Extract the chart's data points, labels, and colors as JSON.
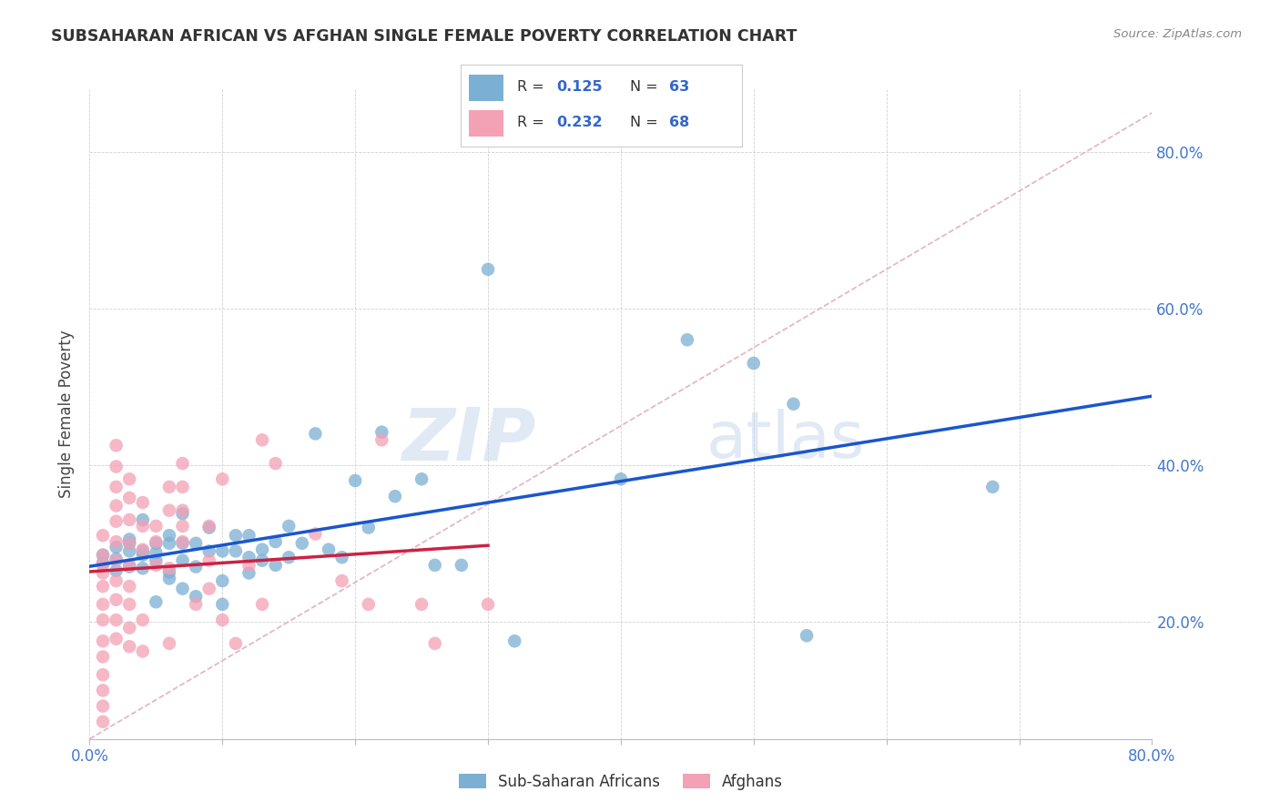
{
  "title": "SUBSAHARAN AFRICAN VS AFGHAN SINGLE FEMALE POVERTY CORRELATION CHART",
  "source": "Source: ZipAtlas.com",
  "ylabel": "Single Female Poverty",
  "xlim": [
    0.0,
    0.8
  ],
  "ylim": [
    0.05,
    0.88
  ],
  "yticks": [
    0.2,
    0.4,
    0.6,
    0.8
  ],
  "xticks": [
    0.0,
    0.1,
    0.2,
    0.3,
    0.4,
    0.5,
    0.6,
    0.7,
    0.8
  ],
  "blue_R": 0.125,
  "blue_N": 63,
  "pink_R": 0.232,
  "pink_N": 68,
  "blue_color": "#7BAFD4",
  "pink_color": "#F4A0B5",
  "blue_line_color": "#1A56CC",
  "pink_line_color": "#CC2244",
  "diagonal_color": "#E0AABB",
  "watermark_zip": "ZIP",
  "watermark_atlas": "atlas",
  "legend_label_blue": "Sub-Saharan Africans",
  "legend_label_pink": "Afghans",
  "blue_scatter": [
    [
      0.01,
      0.285
    ],
    [
      0.01,
      0.275
    ],
    [
      0.02,
      0.295
    ],
    [
      0.02,
      0.265
    ],
    [
      0.02,
      0.28
    ],
    [
      0.03,
      0.305
    ],
    [
      0.03,
      0.29
    ],
    [
      0.03,
      0.27
    ],
    [
      0.03,
      0.3
    ],
    [
      0.04,
      0.285
    ],
    [
      0.04,
      0.33
    ],
    [
      0.04,
      0.29
    ],
    [
      0.04,
      0.268
    ],
    [
      0.05,
      0.3
    ],
    [
      0.05,
      0.288
    ],
    [
      0.05,
      0.278
    ],
    [
      0.05,
      0.225
    ],
    [
      0.06,
      0.31
    ],
    [
      0.06,
      0.3
    ],
    [
      0.06,
      0.263
    ],
    [
      0.06,
      0.255
    ],
    [
      0.07,
      0.338
    ],
    [
      0.07,
      0.3
    ],
    [
      0.07,
      0.278
    ],
    [
      0.07,
      0.242
    ],
    [
      0.08,
      0.3
    ],
    [
      0.08,
      0.27
    ],
    [
      0.08,
      0.232
    ],
    [
      0.09,
      0.32
    ],
    [
      0.09,
      0.29
    ],
    [
      0.1,
      0.29
    ],
    [
      0.1,
      0.252
    ],
    [
      0.1,
      0.222
    ],
    [
      0.11,
      0.31
    ],
    [
      0.11,
      0.29
    ],
    [
      0.12,
      0.31
    ],
    [
      0.12,
      0.282
    ],
    [
      0.12,
      0.262
    ],
    [
      0.13,
      0.292
    ],
    [
      0.13,
      0.278
    ],
    [
      0.14,
      0.302
    ],
    [
      0.14,
      0.272
    ],
    [
      0.15,
      0.322
    ],
    [
      0.15,
      0.282
    ],
    [
      0.16,
      0.3
    ],
    [
      0.17,
      0.44
    ],
    [
      0.18,
      0.292
    ],
    [
      0.19,
      0.282
    ],
    [
      0.2,
      0.38
    ],
    [
      0.21,
      0.32
    ],
    [
      0.22,
      0.442
    ],
    [
      0.23,
      0.36
    ],
    [
      0.25,
      0.382
    ],
    [
      0.26,
      0.272
    ],
    [
      0.28,
      0.272
    ],
    [
      0.3,
      0.65
    ],
    [
      0.32,
      0.175
    ],
    [
      0.4,
      0.382
    ],
    [
      0.45,
      0.56
    ],
    [
      0.5,
      0.53
    ],
    [
      0.53,
      0.478
    ],
    [
      0.54,
      0.182
    ],
    [
      0.68,
      0.372
    ]
  ],
  "pink_scatter": [
    [
      0.01,
      0.285
    ],
    [
      0.01,
      0.31
    ],
    [
      0.01,
      0.262
    ],
    [
      0.01,
      0.272
    ],
    [
      0.01,
      0.245
    ],
    [
      0.01,
      0.222
    ],
    [
      0.01,
      0.202
    ],
    [
      0.01,
      0.175
    ],
    [
      0.01,
      0.155
    ],
    [
      0.01,
      0.132
    ],
    [
      0.01,
      0.112
    ],
    [
      0.01,
      0.092
    ],
    [
      0.01,
      0.072
    ],
    [
      0.02,
      0.425
    ],
    [
      0.02,
      0.398
    ],
    [
      0.02,
      0.372
    ],
    [
      0.02,
      0.348
    ],
    [
      0.02,
      0.328
    ],
    [
      0.02,
      0.302
    ],
    [
      0.02,
      0.278
    ],
    [
      0.02,
      0.252
    ],
    [
      0.02,
      0.228
    ],
    [
      0.02,
      0.202
    ],
    [
      0.02,
      0.178
    ],
    [
      0.03,
      0.382
    ],
    [
      0.03,
      0.358
    ],
    [
      0.03,
      0.33
    ],
    [
      0.03,
      0.3
    ],
    [
      0.03,
      0.272
    ],
    [
      0.03,
      0.245
    ],
    [
      0.03,
      0.222
    ],
    [
      0.03,
      0.192
    ],
    [
      0.03,
      0.168
    ],
    [
      0.04,
      0.352
    ],
    [
      0.04,
      0.322
    ],
    [
      0.04,
      0.292
    ],
    [
      0.04,
      0.202
    ],
    [
      0.04,
      0.162
    ],
    [
      0.05,
      0.322
    ],
    [
      0.05,
      0.302
    ],
    [
      0.05,
      0.272
    ],
    [
      0.06,
      0.372
    ],
    [
      0.06,
      0.342
    ],
    [
      0.06,
      0.268
    ],
    [
      0.06,
      0.172
    ],
    [
      0.07,
      0.402
    ],
    [
      0.07,
      0.372
    ],
    [
      0.07,
      0.342
    ],
    [
      0.07,
      0.302
    ],
    [
      0.07,
      0.322
    ],
    [
      0.08,
      0.222
    ],
    [
      0.09,
      0.322
    ],
    [
      0.09,
      0.278
    ],
    [
      0.09,
      0.242
    ],
    [
      0.1,
      0.382
    ],
    [
      0.1,
      0.202
    ],
    [
      0.11,
      0.172
    ],
    [
      0.12,
      0.272
    ],
    [
      0.13,
      0.432
    ],
    [
      0.13,
      0.222
    ],
    [
      0.14,
      0.402
    ],
    [
      0.17,
      0.312
    ],
    [
      0.19,
      0.252
    ],
    [
      0.21,
      0.222
    ],
    [
      0.22,
      0.432
    ],
    [
      0.25,
      0.222
    ],
    [
      0.26,
      0.172
    ],
    [
      0.3,
      0.222
    ]
  ]
}
